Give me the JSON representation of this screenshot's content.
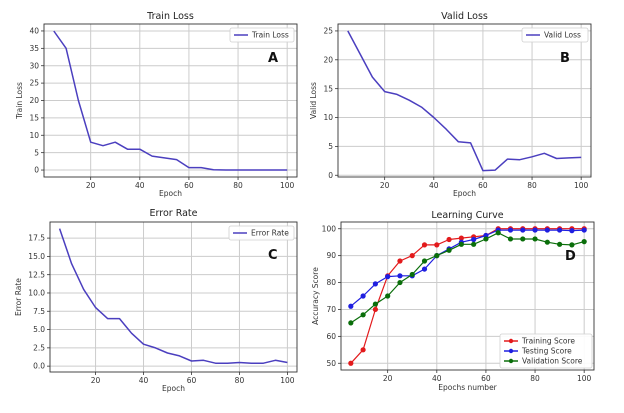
{
  "chart_data": [
    {
      "id": "A",
      "type": "line",
      "title": "Train Loss",
      "xlabel": "Epoch",
      "ylabel": "Train Loss",
      "panel_label": "A",
      "xlim": [
        1,
        104
      ],
      "ylim": [
        -2,
        42
      ],
      "xticks": [
        20,
        40,
        60,
        80,
        100
      ],
      "yticks": [
        0,
        5,
        10,
        15,
        20,
        25,
        30,
        35,
        40
      ],
      "ytick_labels": [
        "0",
        "5",
        "10",
        "15",
        "20",
        "25",
        "30",
        "35",
        "40"
      ],
      "grid": true,
      "legend_position": "top-right",
      "x": [
        5,
        10,
        15,
        20,
        25,
        30,
        35,
        40,
        45,
        50,
        55,
        60,
        65,
        70,
        75,
        80,
        85,
        90,
        95,
        100
      ],
      "series": [
        {
          "name": "Train Loss",
          "color": "#4b3fbf",
          "markers": false,
          "values": [
            40,
            35,
            20,
            8,
            7,
            8,
            6,
            6,
            4,
            3.5,
            3,
            0.7,
            0.7,
            0.1,
            0,
            0,
            0,
            0,
            0,
            0
          ]
        }
      ]
    },
    {
      "id": "B",
      "type": "line",
      "title": "Valid Loss",
      "xlabel": "Epoch",
      "ylabel": "Valid Loss",
      "panel_label": "B",
      "xlim": [
        1,
        104
      ],
      "ylim": [
        -0.3,
        26.2
      ],
      "xticks": [
        20,
        40,
        60,
        80,
        100
      ],
      "yticks": [
        0,
        5,
        10,
        15,
        20,
        25
      ],
      "ytick_labels": [
        "0",
        "5",
        "10",
        "15",
        "20",
        "25"
      ],
      "grid": true,
      "legend_position": "top-right",
      "x": [
        5,
        10,
        15,
        20,
        25,
        30,
        35,
        40,
        45,
        50,
        55,
        60,
        65,
        70,
        75,
        80,
        85,
        90,
        95,
        100
      ],
      "series": [
        {
          "name": "Valid Loss",
          "color": "#4b3fbf",
          "markers": false,
          "values": [
            25,
            21,
            17,
            14.5,
            14,
            13,
            11.8,
            10,
            8,
            5.8,
            5.6,
            0.8,
            0.9,
            2.8,
            2.7,
            3.2,
            3.8,
            2.9,
            3.0,
            3.1
          ]
        }
      ]
    },
    {
      "id": "C",
      "type": "line",
      "title": "Error Rate",
      "xlabel": "Epoch",
      "ylabel": "Error Rate",
      "panel_label": "C",
      "xlim": [
        1,
        104
      ],
      "ylim": [
        -0.8,
        19.7
      ],
      "xticks": [
        20,
        40,
        60,
        80,
        100
      ],
      "yticks": [
        0,
        2.5,
        5,
        7.5,
        10,
        12.5,
        15,
        17.5
      ],
      "ytick_labels": [
        "0.0",
        "2.5",
        "5.0",
        "7.5",
        "10.0",
        "12.5",
        "15.0",
        "17.5"
      ],
      "grid": true,
      "legend_position": "top-right",
      "x": [
        5,
        10,
        15,
        20,
        25,
        30,
        35,
        40,
        45,
        50,
        55,
        60,
        65,
        70,
        75,
        80,
        85,
        90,
        95,
        100
      ],
      "series": [
        {
          "name": "Error Rate",
          "color": "#4b3fbf",
          "markers": false,
          "values": [
            18.8,
            14,
            10.5,
            8,
            6.5,
            6.5,
            4.5,
            3,
            2.5,
            1.8,
            1.4,
            0.7,
            0.8,
            0.4,
            0.4,
            0.5,
            0.4,
            0.4,
            0.8,
            0.5
          ]
        }
      ]
    },
    {
      "id": "D",
      "type": "line",
      "title": "Learning Curve",
      "xlabel": "Epochs number",
      "ylabel": "Accuracy Score",
      "panel_label": "D",
      "xlim": [
        1,
        104
      ],
      "ylim": [
        47.5,
        102.5
      ],
      "xticks": [
        20,
        40,
        60,
        80,
        100
      ],
      "yticks": [
        50,
        60,
        70,
        80,
        90,
        100
      ],
      "ytick_labels": [
        "50",
        "60",
        "70",
        "80",
        "90",
        "100"
      ],
      "grid": true,
      "legend_position": "bottom-right",
      "x": [
        5,
        10,
        15,
        20,
        25,
        30,
        35,
        40,
        45,
        50,
        55,
        60,
        65,
        70,
        75,
        80,
        85,
        90,
        95,
        100
      ],
      "series": [
        {
          "name": "Training Score",
          "color": "#e31a1c",
          "markers": true,
          "values": [
            50,
            55,
            70,
            82.5,
            88,
            90,
            94,
            94,
            96,
            96.5,
            97,
            97.5,
            100,
            100,
            100,
            100,
            100,
            100,
            100,
            100
          ]
        },
        {
          "name": "Testing Score",
          "color": "#1f1fe0",
          "markers": true,
          "values": [
            71.2,
            75,
            79.5,
            82.2,
            82.5,
            82.5,
            85,
            90,
            92.5,
            95,
            96,
            97.5,
            99.5,
            99.5,
            99.5,
            99.5,
            99.5,
            99.5,
            99.3,
            99.5
          ]
        },
        {
          "name": "Validation Score",
          "color": "#0a6e0a",
          "markers": true,
          "values": [
            65,
            68,
            72,
            75,
            80,
            83,
            88,
            90,
            92,
            94.2,
            94.2,
            96.2,
            98.5,
            96.2,
            96.2,
            96.2,
            95,
            94.2,
            94,
            95.2
          ]
        }
      ]
    }
  ]
}
